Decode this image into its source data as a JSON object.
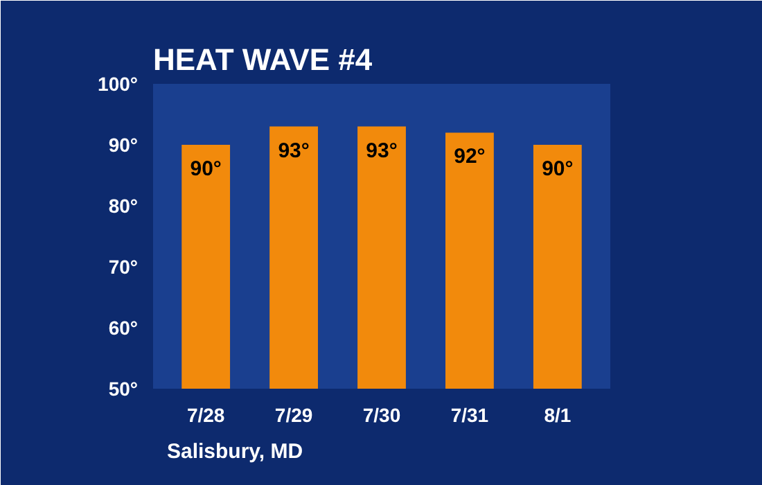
{
  "chart_data": {
    "type": "bar",
    "title": "HEAT WAVE #4",
    "categories": [
      "7/28",
      "7/29",
      "7/30",
      "7/31",
      "8/1"
    ],
    "values": [
      90,
      93,
      93,
      92,
      90
    ],
    "value_labels": [
      "90°",
      "93°",
      "93°",
      "92°",
      "90°"
    ],
    "color": "#f28a0c",
    "ylim": [
      50,
      100
    ],
    "yticks": [
      {
        "value": 50,
        "label": "50°"
      },
      {
        "value": 60,
        "label": "60°"
      },
      {
        "value": 70,
        "label": "70°"
      },
      {
        "value": 80,
        "label": "80°"
      },
      {
        "value": 90,
        "label": "90°"
      },
      {
        "value": 100,
        "label": "100°"
      }
    ],
    "grid": false,
    "annotations": [
      "Salisbury, MD"
    ]
  }
}
